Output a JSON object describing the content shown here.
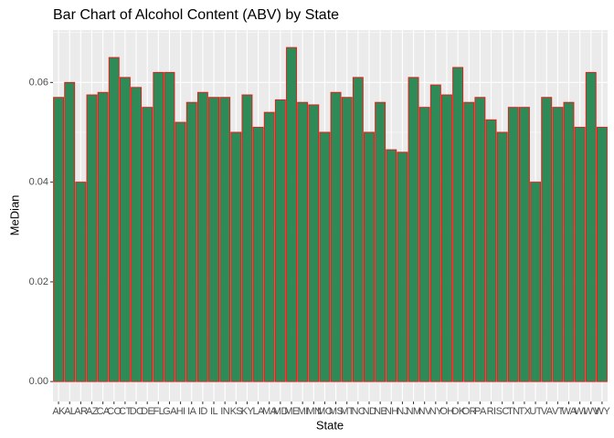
{
  "chart_data": {
    "type": "bar",
    "title": "Bar Chart of Alcohol Content (ABV) by State",
    "x_label": "State",
    "y_label": "MeDian",
    "categories": [
      "AK",
      "AL",
      "AR",
      "AZ",
      "CA",
      "CO",
      "CT",
      "DC",
      "DE",
      "FL",
      "GA",
      "HI",
      "IA",
      "ID",
      "IL",
      "IN",
      "KS",
      "KY",
      "LA",
      "MA",
      "MD",
      "ME",
      "MI",
      "MN",
      "MO",
      "MS",
      "MT",
      "NC",
      "ND",
      "NE",
      "NH",
      "NJ",
      "NM",
      "NV",
      "NY",
      "OH",
      "OK",
      "OR",
      "PA",
      "RI",
      "SC",
      "TN",
      "TX",
      "UT",
      "VA",
      "VT",
      "WA",
      "WI",
      "WV",
      "WY"
    ],
    "values": [
      0.057,
      0.06,
      0.04,
      0.0575,
      0.058,
      0.065,
      0.061,
      0.059,
      0.055,
      0.062,
      0.062,
      0.052,
      0.056,
      0.058,
      0.057,
      0.057,
      0.05,
      0.0575,
      0.051,
      0.054,
      0.0565,
      0.067,
      0.056,
      0.0555,
      0.05,
      0.058,
      0.057,
      0.061,
      0.05,
      0.056,
      0.0465,
      0.046,
      0.061,
      0.055,
      0.0595,
      0.0575,
      0.063,
      0.056,
      0.057,
      0.0525,
      0.05,
      0.055,
      0.055,
      0.04,
      0.057,
      0.055,
      0.056,
      0.051,
      0.062,
      0.051
    ],
    "color": "#2e8b57",
    "edge_color": "#e0201b",
    "ylim": [
      -0.004,
      0.0705
    ],
    "yticks": [
      {
        "value": 0,
        "label": "0.00"
      },
      {
        "value": 0.02,
        "label": "0.02"
      },
      {
        "value": 0.04,
        "label": "0.04"
      },
      {
        "value": 0.06,
        "label": "0.06"
      }
    ],
    "minor_yticks": [
      0.01,
      0.03,
      0.05,
      0.07
    ],
    "grid": true
  }
}
